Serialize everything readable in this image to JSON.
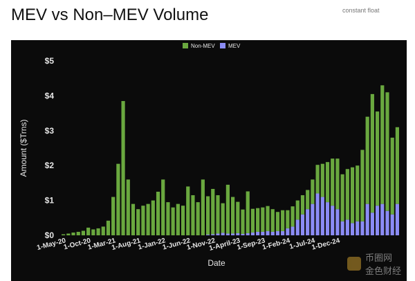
{
  "page": {
    "title": "MEV vs Non–MEV Volume",
    "header_note": "constant float"
  },
  "watermark": {
    "line1": "币圈网",
    "line2": "金色财经"
  },
  "colors": {
    "background": "#0b0b0b",
    "non_mev": "#6aa83f",
    "mev": "#8b8cf5",
    "axis_text": "#e6e6e6",
    "grid": "#2a2a2a"
  },
  "chart_data": {
    "type": "bar",
    "stacked": true,
    "xlabel": "Date",
    "ylabel": "Amount ($Trns)",
    "ylim": [
      0,
      5
    ],
    "yticks": [
      "$0",
      "$1",
      "$2",
      "$3",
      "$4",
      "$5"
    ],
    "grid": false,
    "legend_position": "top-center",
    "x_tick_labels": [
      {
        "index": 0,
        "label": "1-May-20"
      },
      {
        "index": 5,
        "label": "1-Oct-20"
      },
      {
        "index": 10,
        "label": "1-Mar-21"
      },
      {
        "index": 15,
        "label": "1-Aug-21"
      },
      {
        "index": 20,
        "label": "1-Jan-22"
      },
      {
        "index": 25,
        "label": "1-Jun-22"
      },
      {
        "index": 30,
        "label": "1-Nov-22"
      },
      {
        "index": 35,
        "label": "1-April-23"
      },
      {
        "index": 40,
        "label": "1-Sep-23"
      },
      {
        "index": 45,
        "label": "1-Feb-24"
      },
      {
        "index": 50,
        "label": "1-Jul-24"
      },
      {
        "index": 55,
        "label": "1-Dec-24"
      }
    ],
    "series": [
      {
        "name": "Non-MEV",
        "values": [
          0.03,
          0.05,
          0.08,
          0.1,
          0.13,
          0.22,
          0.17,
          0.2,
          0.25,
          0.42,
          1.1,
          2.05,
          3.85,
          1.6,
          0.9,
          0.75,
          0.85,
          0.9,
          1.0,
          1.25,
          1.6,
          0.95,
          0.8,
          0.9,
          0.85,
          1.4,
          1.15,
          0.95,
          1.6,
          1.1,
          1.3,
          1.1,
          0.85,
          1.4,
          1.05,
          0.9,
          0.7,
          1.2,
          0.68,
          0.68,
          0.7,
          0.72,
          0.65,
          0.55,
          0.6,
          0.52,
          0.58,
          0.55,
          0.55,
          0.55,
          0.7,
          0.82,
          0.95,
          1.15,
          1.35,
          1.45,
          1.35,
          1.45,
          1.6,
          1.6,
          2.05,
          2.5,
          3.4,
          2.7,
          3.4,
          3.4,
          2.2,
          2.2
        ],
        "mev": [
          0.0,
          0.0,
          0.0,
          0.0,
          0.0,
          0.0,
          0.0,
          0.0,
          0.0,
          0.0,
          0.0,
          0.0,
          0.0,
          0.0,
          0.0,
          0.0,
          0.0,
          0.0,
          0.0,
          0.0,
          0.0,
          0.0,
          0.0,
          0.0,
          0.0,
          0.0,
          0.0,
          0.0,
          0.0,
          0.02,
          0.03,
          0.05,
          0.07,
          0.05,
          0.05,
          0.06,
          0.04,
          0.06,
          0.08,
          0.1,
          0.1,
          0.12,
          0.1,
          0.12,
          0.12,
          0.2,
          0.25,
          0.45,
          0.6,
          0.75,
          0.9,
          1.2,
          1.1,
          0.95,
          0.85,
          0.75,
          0.4,
          0.45,
          0.35,
          0.4,
          0.4,
          0.9,
          0.65,
          0.85,
          0.9,
          0.7,
          0.6,
          0.9
        ]
      },
      {
        "name": "MEV",
        "values": [
          0.0,
          0.0,
          0.0,
          0.0,
          0.0,
          0.0,
          0.0,
          0.0,
          0.0,
          0.0,
          0.0,
          0.0,
          0.0,
          0.0,
          0.0,
          0.0,
          0.0,
          0.0,
          0.0,
          0.0,
          0.0,
          0.0,
          0.0,
          0.0,
          0.0,
          0.0,
          0.0,
          0.0,
          0.0,
          0.02,
          0.03,
          0.05,
          0.07,
          0.05,
          0.05,
          0.06,
          0.04,
          0.06,
          0.08,
          0.1,
          0.1,
          0.12,
          0.1,
          0.12,
          0.12,
          0.2,
          0.25,
          0.45,
          0.6,
          0.75,
          0.9,
          1.2,
          1.1,
          0.95,
          0.85,
          0.75,
          0.4,
          0.45,
          0.35,
          0.4,
          0.4,
          0.9,
          0.65,
          0.85,
          0.9,
          0.7,
          0.6,
          0.9
        ]
      }
    ]
  }
}
